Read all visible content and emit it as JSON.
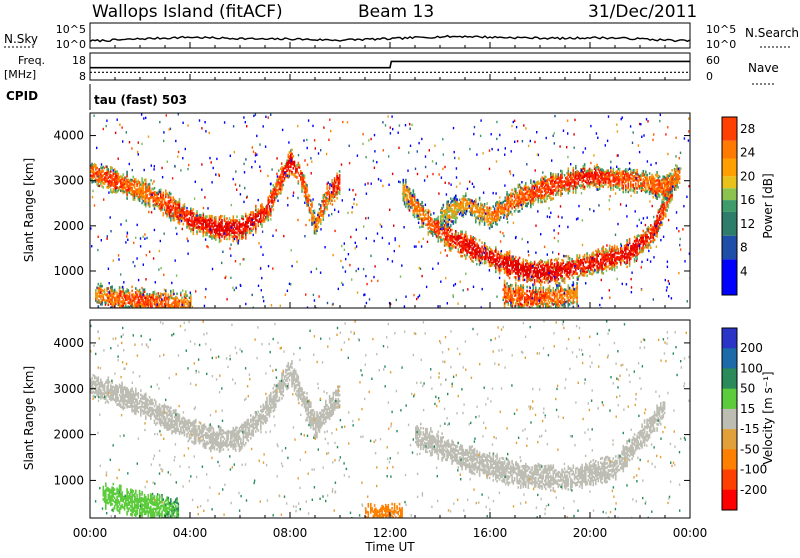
{
  "header": {
    "station": "Wallops Island (fitACF)",
    "beam": "Beam 13",
    "date": "31/Dec/2011"
  },
  "nsky_panel": {
    "left_label": "N.Sky",
    "right_label": "N.Search",
    "ticks_left": [
      "10^5",
      "10^0"
    ],
    "ticks_right": [
      "10^5",
      "10^0"
    ]
  },
  "freq_panel": {
    "left_label_line1": "Freq.",
    "left_label_line2": "[MHz]",
    "left_ticks": [
      "18",
      "8"
    ],
    "right_label": "Nave",
    "right_ticks": [
      "60",
      "0"
    ],
    "cpid_label": "CPID",
    "cpid_value": "tau (fast) 503"
  },
  "power_panel": {
    "ylabel": "Slant Range [km]",
    "yticks": [
      "4000",
      "3000",
      "2000",
      "1000"
    ],
    "colorbar_label": "Power [dB]",
    "colorbar_ticks": [
      "28",
      "24",
      "20",
      "16",
      "12",
      "8",
      "4"
    ]
  },
  "velocity_panel": {
    "ylabel": "Slant Range [km]",
    "yticks": [
      "4000",
      "3000",
      "2000",
      "1000"
    ],
    "colorbar_label": "Velocity [m s⁻¹]",
    "colorbar_ticks": [
      "200",
      "100",
      "50",
      "15",
      "-15",
      "-50",
      "-100",
      "-200"
    ]
  },
  "x_axis": {
    "label": "Time UT",
    "ticks": [
      "00:00",
      "04:00",
      "08:00",
      "12:00",
      "16:00",
      "20:00",
      "00:00"
    ]
  },
  "colors": {
    "power_scale": [
      "#0000ff",
      "#2050a0",
      "#2e7d6a",
      "#3e9b6b",
      "#7bbf57",
      "#e8a21a",
      "#ff8a00",
      "#ff5a00",
      "#ff2000",
      "#e00000"
    ],
    "velocity_scale": [
      "#2a35c8",
      "#1c6aa8",
      "#2a8a5a",
      "#5ccc3c",
      "#bdbdb4",
      "#e2a03a",
      "#ff8000",
      "#ff4000",
      "#ff0000"
    ]
  },
  "chart_data": [
    {
      "type": "line",
      "name_key": "nsky",
      "x_unit": "hours UT",
      "y_scale": "log",
      "ylim_exponent": [
        0,
        5
      ],
      "series": [
        {
          "x": [
            0,
            1,
            2,
            3,
            4,
            5,
            6,
            7,
            8,
            9,
            10,
            11,
            12,
            13,
            14,
            15,
            16,
            17,
            18,
            19,
            20,
            21,
            22,
            23,
            24
          ],
          "y_exponent": [
            1.2,
            1.4,
            1.7,
            1.9,
            2.1,
            1.9,
            1.8,
            1.6,
            1.7,
            1.5,
            1.4,
            1.6,
            1.7,
            2.0,
            2.2,
            2.3,
            2.1,
            2.0,
            1.9,
            1.8,
            2.0,
            1.9,
            1.7,
            1.4,
            1.2
          ]
        }
      ]
    },
    {
      "type": "line",
      "name_key": "frequency",
      "ylim": [
        8,
        18
      ],
      "series": [
        {
          "x": [
            0,
            0.1,
            12,
            12.05,
            24
          ],
          "y": [
            12.5,
            12.5,
            12.5,
            15.2,
            15.2
          ]
        }
      ]
    },
    {
      "type": "line",
      "name_key": "nave",
      "ylim": [
        0,
        60
      ],
      "series": [
        {
          "x": [
            0,
            24
          ],
          "y": [
            15,
            15
          ]
        }
      ]
    },
    {
      "type": "heatmap",
      "name_key": "power",
      "xlim": [
        0,
        24
      ],
      "ylim": [
        180,
        4500
      ],
      "zlim": [
        0,
        30
      ],
      "echo_bands": [
        {
          "x": [
            0.0,
            1.0,
            2.0,
            3.0,
            4.0,
            5.0,
            6.0,
            7.0,
            7.5,
            8.0,
            8.5,
            9.0,
            9.5,
            10.0
          ],
          "y": [
            3200,
            3000,
            2800,
            2500,
            2150,
            1950,
            1950,
            2300,
            2900,
            3450,
            3000,
            2000,
            2700,
            3000
          ],
          "z": [
            22,
            24,
            20,
            24,
            26,
            28,
            28,
            26,
            24,
            28,
            24,
            18,
            24,
            26
          ]
        },
        {
          "x": [
            12.5,
            13.5,
            14.5,
            15.5,
            16.5,
            17.5,
            18.5,
            19.5,
            20.5,
            21.5,
            22.5,
            23.3
          ],
          "y": [
            2800,
            2100,
            1700,
            1450,
            1200,
            1000,
            1000,
            1100,
            1250,
            1400,
            1850,
            2900
          ],
          "z": [
            18,
            22,
            26,
            28,
            28,
            30,
            28,
            26,
            26,
            28,
            26,
            24
          ]
        },
        {
          "x": [
            14.0,
            15.0,
            16.0,
            17.0,
            18.0,
            19.0,
            20.0,
            21.0,
            22.0,
            23.0,
            23.6
          ],
          "y": [
            2200,
            2500,
            2200,
            2600,
            2800,
            3000,
            3100,
            3050,
            3000,
            2850,
            3200
          ],
          "z": [
            14,
            18,
            20,
            22,
            24,
            24,
            26,
            24,
            22,
            22,
            20
          ]
        },
        {
          "x": [
            16.5,
            17.5,
            18.5,
            19.5
          ],
          "y": [
            500,
            400,
            420,
            500
          ],
          "z": [
            22,
            24,
            22,
            18
          ]
        },
        {
          "x": [
            0.2,
            1.0,
            2.0,
            3.0,
            4.0
          ],
          "y": [
            500,
            400,
            350,
            300,
            250
          ],
          "z": [
            18,
            22,
            24,
            22,
            20
          ]
        }
      ]
    },
    {
      "type": "heatmap",
      "name_key": "velocity",
      "xlim": [
        0,
        24
      ],
      "ylim": [
        180,
        4500
      ],
      "zlim": [
        -250,
        250
      ],
      "echo_bands": [
        {
          "x": [
            0.0,
            2.0,
            4.0,
            5.0,
            6.0,
            7.0,
            8.0,
            9.0,
            10.0
          ],
          "y": [
            3100,
            2700,
            2100,
            1900,
            1950,
            2500,
            3400,
            2200,
            2900
          ],
          "z": [
            0,
            0,
            0,
            0,
            0,
            0,
            5,
            0,
            0
          ]
        },
        {
          "x": [
            13.0,
            15.0,
            17.0,
            19.0,
            21.0,
            23.0
          ],
          "y": [
            2000,
            1500,
            1150,
            1050,
            1300,
            2600
          ],
          "z": [
            0,
            0,
            0,
            0,
            0,
            0
          ]
        },
        {
          "x": [
            0.5,
            1.5,
            2.5,
            3.5
          ],
          "y": [
            700,
            550,
            450,
            350
          ],
          "z": [
            40,
            40,
            35,
            30
          ]
        },
        {
          "x": [
            11.0,
            12.5
          ],
          "y": [
            200,
            200
          ],
          "z": [
            -60,
            -80
          ]
        }
      ]
    }
  ]
}
